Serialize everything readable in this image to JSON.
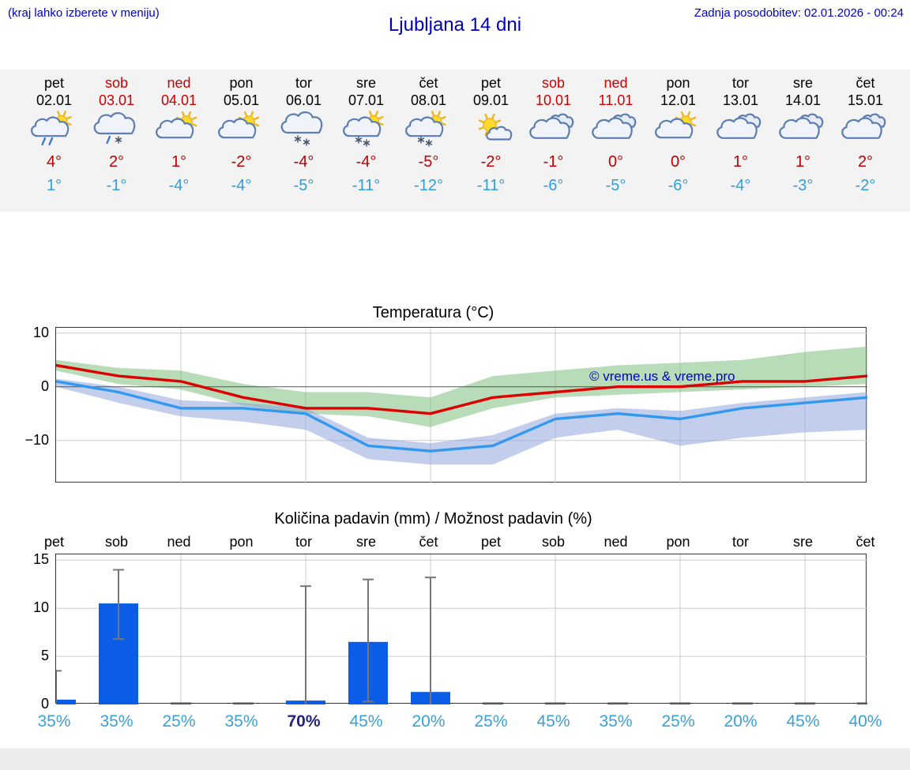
{
  "header": {
    "menu_note": "(kraj lahko izberete v meniju)",
    "title": "Ljubljana 14 dni",
    "last_update": "Zadnja posodobitev: 02.01.2026 - 00:24"
  },
  "forecast": {
    "days": [
      {
        "name": "pet",
        "date": "02.01",
        "weekend": false,
        "icon": "sun-cloud-rain",
        "high": "4°",
        "low": "1°"
      },
      {
        "name": "sob",
        "date": "03.01",
        "weekend": true,
        "icon": "cloud-rain-snow",
        "high": "2°",
        "low": "-1°"
      },
      {
        "name": "ned",
        "date": "04.01",
        "weekend": true,
        "icon": "sun-cloud",
        "high": "1°",
        "low": "-4°"
      },
      {
        "name": "pon",
        "date": "05.01",
        "weekend": false,
        "icon": "sun-cloud",
        "high": "-2°",
        "low": "-4°"
      },
      {
        "name": "tor",
        "date": "06.01",
        "weekend": false,
        "icon": "cloud-snow",
        "high": "-4°",
        "low": "-5°"
      },
      {
        "name": "sre",
        "date": "07.01",
        "weekend": false,
        "icon": "sun-cloud-snow",
        "high": "-4°",
        "low": "-11°"
      },
      {
        "name": "čet",
        "date": "08.01",
        "weekend": false,
        "icon": "sun-cloud-snow",
        "high": "-5°",
        "low": "-12°"
      },
      {
        "name": "pet",
        "date": "09.01",
        "weekend": false,
        "icon": "sun-small-cloud",
        "high": "-2°",
        "low": "-11°"
      },
      {
        "name": "sob",
        "date": "10.01",
        "weekend": true,
        "icon": "cloud",
        "high": "-1°",
        "low": "-6°"
      },
      {
        "name": "ned",
        "date": "11.01",
        "weekend": true,
        "icon": "cloud",
        "high": "0°",
        "low": "-5°"
      },
      {
        "name": "pon",
        "date": "12.01",
        "weekend": false,
        "icon": "sun-cloud",
        "high": "0°",
        "low": "-6°"
      },
      {
        "name": "tor",
        "date": "13.01",
        "weekend": false,
        "icon": "cloud",
        "high": "1°",
        "low": "-4°"
      },
      {
        "name": "sre",
        "date": "14.01",
        "weekend": false,
        "icon": "cloud",
        "high": "1°",
        "low": "-3°"
      },
      {
        "name": "čet",
        "date": "15.01",
        "weekend": false,
        "icon": "cloud",
        "high": "2°",
        "low": "-2°"
      }
    ]
  },
  "chart_data": [
    {
      "type": "line",
      "title": "Temperatura (°C)",
      "categories": [
        "pet 02.01",
        "sob 03.01",
        "ned 04.01",
        "pon 05.01",
        "tor 06.01",
        "sre 07.01",
        "čet 08.01",
        "pet 09.01",
        "sob 10.01",
        "ned 11.01",
        "pon 12.01",
        "tor 13.01",
        "sre 14.01",
        "čet 15.01"
      ],
      "series": [
        {
          "name": "max temperature",
          "color": "#dd0000",
          "values": [
            4,
            2,
            1,
            -2,
            -4,
            -4,
            -5,
            -2,
            -1,
            0,
            0,
            1,
            1,
            2
          ]
        },
        {
          "name": "min temperature",
          "color": "#3399ee",
          "values": [
            1,
            -1,
            -4,
            -4,
            -5,
            -11,
            -12,
            -11,
            -6,
            -5,
            -6,
            -4,
            -3,
            -2
          ]
        }
      ],
      "bands": [
        {
          "name": "max temperature range",
          "color": "#7cbf7c",
          "upper": [
            5,
            3.5,
            3,
            0.5,
            -1,
            -1,
            -2,
            2,
            3,
            4,
            4.5,
            5,
            6.5,
            7.5
          ],
          "lower": [
            3,
            0.5,
            -0.5,
            -3.5,
            -5,
            -5.5,
            -7.5,
            -4,
            -2,
            -1.5,
            -1,
            -0.5,
            0,
            0.5
          ]
        },
        {
          "name": "min temperature range",
          "color": "#8fa6dc",
          "upper": [
            1.5,
            0,
            -2.5,
            -3,
            -4,
            -9.5,
            -10.5,
            -9,
            -5,
            -4,
            -4.5,
            -3,
            -2,
            -1
          ],
          "lower": [
            0,
            -3,
            -5.5,
            -6.5,
            -8,
            -13.5,
            -14.5,
            -14.5,
            -9.5,
            -8,
            -11,
            -9.5,
            -8.5,
            -8
          ]
        }
      ],
      "ylim": [
        -18,
        11
      ],
      "yticks": [
        10,
        0,
        -10
      ],
      "x_gridlines_at": [
        2,
        4,
        6,
        8,
        10,
        12
      ],
      "grid": true,
      "watermark": "© vreme.us & vreme.pro"
    },
    {
      "type": "bar",
      "title": "Količina padavin (mm) / Možnost padavin (%)",
      "categories": [
        "pet",
        "sob",
        "ned",
        "pon",
        "tor",
        "sre",
        "čet",
        "pet",
        "sob",
        "ned",
        "pon",
        "tor",
        "sre",
        "čet"
      ],
      "values": [
        0.5,
        10.5,
        0,
        0,
        0.4,
        6.5,
        1.3,
        0,
        0,
        0,
        0,
        0,
        0,
        0
      ],
      "whiskers": [
        {
          "low": 0,
          "high": 3.5
        },
        {
          "low": 6.8,
          "high": 14
        },
        null,
        null,
        {
          "low": 0,
          "high": 12.3
        },
        {
          "low": 0.3,
          "high": 13
        },
        {
          "low": 0,
          "high": 13.2
        },
        null,
        null,
        null,
        null,
        null,
        null,
        null
      ],
      "probabilities": [
        {
          "label": "35%",
          "strong": false
        },
        {
          "label": "35%",
          "strong": false
        },
        {
          "label": "25%",
          "strong": false
        },
        {
          "label": "35%",
          "strong": false
        },
        {
          "label": "70%",
          "strong": true
        },
        {
          "label": "45%",
          "strong": false
        },
        {
          "label": "20%",
          "strong": false
        },
        {
          "label": "25%",
          "strong": false
        },
        {
          "label": "45%",
          "strong": false
        },
        {
          "label": "35%",
          "strong": false
        },
        {
          "label": "25%",
          "strong": false
        },
        {
          "label": "20%",
          "strong": false
        },
        {
          "label": "45%",
          "strong": false
        },
        {
          "label": "40%",
          "strong": false
        }
      ],
      "bar_color": "#0b5ce6",
      "whisker_color": "#777777",
      "ylim": [
        0,
        15.6
      ],
      "yticks": [
        0,
        5,
        10,
        15
      ],
      "x_gridlines_at": [
        2,
        4,
        6,
        8,
        10,
        12
      ],
      "grid": true
    }
  ]
}
